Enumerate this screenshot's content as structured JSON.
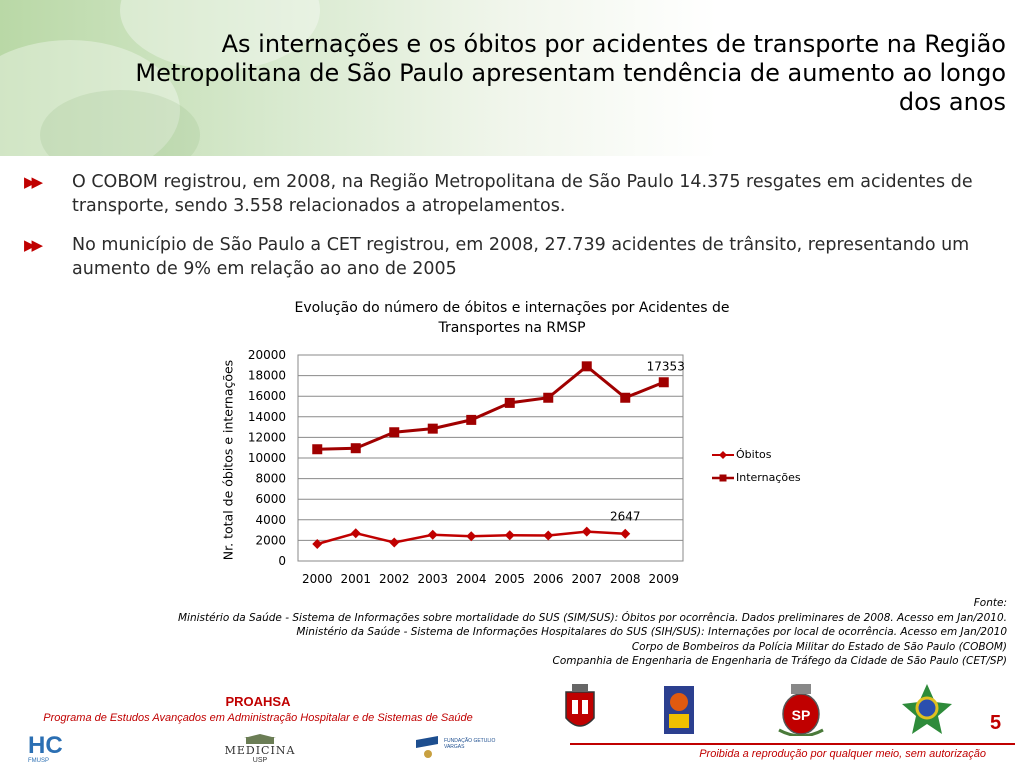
{
  "header": {
    "title": "As internações e os óbitos por acidentes de transporte na Região Metropolitana de São Paulo apresentam tendência de aumento ao longo dos anos"
  },
  "bullets": [
    {
      "icon": "double-arrow-icon",
      "text": "O COBOM registrou, em 2008, na Região Metropolitana de São Paulo 14.375 resgates em acidentes de transporte, sendo 3.558 relacionados a atropelamentos."
    },
    {
      "icon": "double-arrow-icon",
      "text": "No município de São Paulo a CET registrou, em 2008, 27.739 acidentes de trânsito, representando um aumento de 9% em relação ao ano de 2005"
    }
  ],
  "chart_data": {
    "type": "line",
    "title": "Evolução do número de óbitos e internações por Acidentes de Transportes na RMSP",
    "xlabel": "",
    "ylabel": "Nr. total  de óbitos e internações",
    "categories": [
      "2000",
      "2001",
      "2002",
      "2003",
      "2004",
      "2005",
      "2006",
      "2007",
      "2008",
      "2009"
    ],
    "ylim": [
      0,
      20000
    ],
    "yticks": [
      "0",
      "2000",
      "4000",
      "6000",
      "8000",
      "10000",
      "12000",
      "14000",
      "16000",
      "18000",
      "20000"
    ],
    "grid": true,
    "legend_position": "right",
    "series": [
      {
        "name": "Óbitos",
        "marker": "diamond",
        "color": "#c00000",
        "values": [
          1650,
          2700,
          1800,
          2550,
          2400,
          2500,
          2480,
          2850,
          2647,
          null
        ]
      },
      {
        "name": "Internações",
        "marker": "square",
        "color": "#a00000",
        "values": [
          10850,
          10950,
          12500,
          12850,
          13700,
          15350,
          15850,
          18900,
          15850,
          17353
        ]
      }
    ],
    "annotations": [
      {
        "series": "Óbitos",
        "category": "2008",
        "text": "2647"
      },
      {
        "series": "Internações",
        "category": "2009",
        "text": "17353"
      }
    ]
  },
  "sources": {
    "heading": "Fonte:",
    "lines": [
      "Ministério da Saúde - Sistema de Informações sobre mortalidade do SUS (SIM/SUS): Óbitos por ocorrência.  Dados preliminares de 2008. Acesso em Jan/2010.",
      "Ministério da Saúde - Sistema de Informações Hospitalares do SUS (SIH/SUS): Internações por local de ocorrência. Acesso em Jan/2010",
      "Corpo de Bombeiros da Polícia Militar do Estado de São Paulo (COBOM)",
      "Companhia de Engenharia de  Engenharia de Tráfego da Cidade de São Paulo (CET/SP)"
    ]
  },
  "footer": {
    "proaksa": "PROAHSA",
    "program": "Programa de Estudos Avançados em Administração Hospitalar e de Sistemas de Saúde",
    "page_number": "5",
    "copyright": "Proibida a reprodução por qualquer meio, sem autorização",
    "logos": [
      {
        "name": "hc-fmusp-logo",
        "text": "HC",
        "subtext": "FMUSP"
      },
      {
        "name": "medicina-usp-logo",
        "text": "MEDICINA",
        "subtext": "USP"
      },
      {
        "name": "fgv-logo",
        "text": "FUNDAÇÃO GETULIO VARGAS"
      },
      {
        "name": "sao-paulo-city-seal-logo"
      },
      {
        "name": "sus-logo"
      },
      {
        "name": "sao-paulo-state-seal-logo",
        "text": "SP"
      },
      {
        "name": "brazil-coat-of-arms-logo"
      }
    ]
  },
  "colors": {
    "accent": "#c00000",
    "series_line": "#a50000"
  }
}
